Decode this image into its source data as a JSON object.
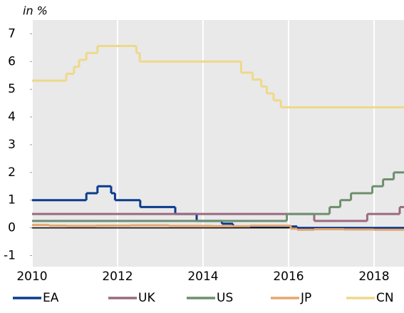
{
  "chart_data": {
    "type": "line",
    "unit_label": "in %",
    "xlim": [
      2010,
      2018.7
    ],
    "xticks": [
      2010,
      2012,
      2014,
      2016,
      2018
    ],
    "ylim": [
      -1.4,
      7.5
    ],
    "yticks": [
      -1,
      0,
      1,
      2,
      3,
      4,
      5,
      6,
      7
    ],
    "grid": true,
    "step": true,
    "legend": "bottom",
    "series": [
      {
        "name": "EA",
        "color": "#0b3b8c",
        "x": [
          2010,
          2011.27,
          2011.53,
          2011.85,
          2011.94,
          2012.53,
          2013.35,
          2013.85,
          2014.44,
          2014.7,
          2016.2
        ],
        "values": [
          1.0,
          1.25,
          1.5,
          1.25,
          1.0,
          0.75,
          0.5,
          0.25,
          0.15,
          0.05,
          0
        ]
      },
      {
        "name": "UK",
        "color": "#9a6a7e",
        "x": [
          2010,
          2016.6,
          2017.84,
          2018.6
        ],
        "values": [
          0.5,
          0.25,
          0.5,
          0.75
        ]
      },
      {
        "name": "US",
        "color": "#6e8f6e",
        "x": [
          2010,
          2015.96,
          2016.96,
          2017.21,
          2017.46,
          2017.96,
          2018.21,
          2018.46
        ],
        "values": [
          0.25,
          0.5,
          0.75,
          1.0,
          1.25,
          1.5,
          1.75,
          2.0
        ]
      },
      {
        "name": "JP",
        "color": "#e6a56e",
        "x": [
          2010,
          2010.4,
          2010.8,
          2011.5,
          2012.3,
          2013.2,
          2014.2,
          2015.1,
          2016.05,
          2016.2,
          2016.6,
          2017.3,
          2018.0
        ],
        "values": [
          0.1,
          0.08,
          0.07,
          0.08,
          0.09,
          0.07,
          0.06,
          0.08,
          -0.03,
          -0.07,
          -0.05,
          -0.06,
          -0.07
        ]
      },
      {
        "name": "CN",
        "color": "#eed98a",
        "x": [
          2010,
          2010.8,
          2010.98,
          2011.1,
          2011.27,
          2011.53,
          2012.44,
          2012.52,
          2014.89,
          2015.16,
          2015.36,
          2015.49,
          2015.65,
          2015.82
        ],
        "values": [
          5.31,
          5.56,
          5.81,
          6.06,
          6.31,
          6.56,
          6.31,
          6.0,
          5.6,
          5.35,
          5.1,
          4.85,
          4.6,
          4.35
        ]
      }
    ]
  }
}
